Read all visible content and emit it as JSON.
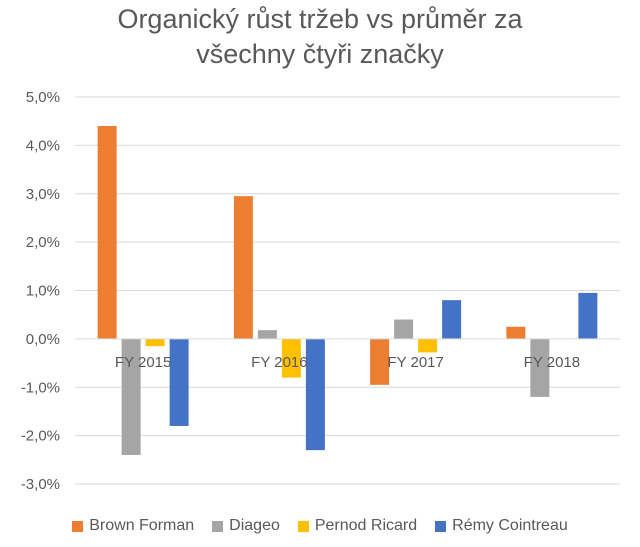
{
  "chart_data": {
    "type": "bar",
    "title_line1": "Organický růst tržeb vs průměr za",
    "title_line2": "všechny čtyři značky",
    "categories": [
      "FY 2015",
      "FY 2016",
      "FY 2017",
      "FY 2018"
    ],
    "series": [
      {
        "name": "Brown Forman",
        "color": "#ED7D31",
        "values": [
          4.4,
          2.95,
          -0.95,
          0.25
        ]
      },
      {
        "name": "Diageo",
        "color": "#A5A5A5",
        "values": [
          -2.4,
          0.18,
          0.4,
          -1.2
        ]
      },
      {
        "name": "Pernod Ricard",
        "color": "#FFC000",
        "values": [
          -0.15,
          -0.8,
          -0.28,
          0.0
        ]
      },
      {
        "name": "Rémy Cointreau",
        "color": "#4472C4",
        "values": [
          -1.8,
          -2.3,
          0.8,
          0.95
        ]
      }
    ],
    "y_ticks": [
      "5,0%",
      "4,0%",
      "3,0%",
      "2,0%",
      "1,0%",
      "0,0%",
      "-1,0%",
      "-2,0%",
      "-3,0%"
    ],
    "ylim": [
      -3,
      5
    ],
    "grid": true,
    "legend_position": "bottom"
  }
}
